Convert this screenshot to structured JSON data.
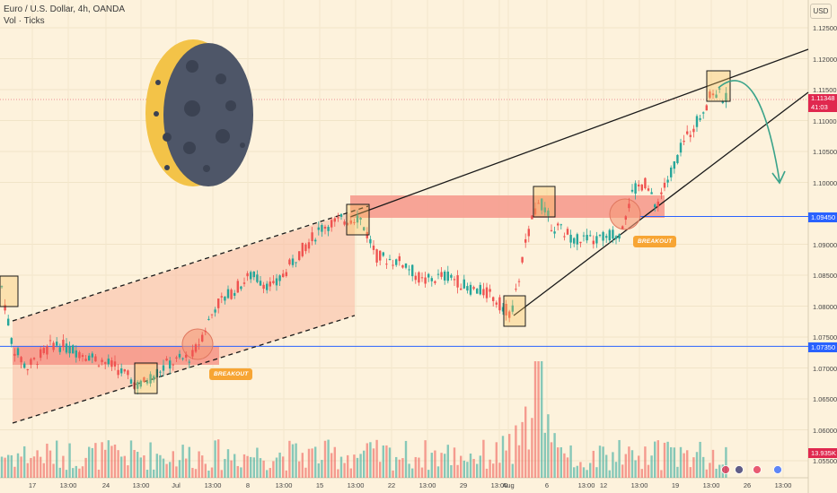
{
  "legend": {
    "title": "Euro / U.S. Dollar, 4h, OANDA",
    "indicator": "Vol · Ticks"
  },
  "currency": "USD",
  "price_axis": [
    {
      "label": "1.12500",
      "v": 1.125
    },
    {
      "label": "1.12000",
      "v": 1.12
    },
    {
      "label": "1.11500",
      "v": 1.115
    },
    {
      "label": "1.11000",
      "v": 1.11
    },
    {
      "label": "1.10500",
      "v": 1.105
    },
    {
      "label": "1.10000",
      "v": 1.1
    },
    {
      "label": "1.09000",
      "v": 1.09
    },
    {
      "label": "1.08500",
      "v": 1.085
    },
    {
      "label": "1.08000",
      "v": 1.08
    },
    {
      "label": "1.07500",
      "v": 1.075
    },
    {
      "label": "1.07000",
      "v": 1.07
    },
    {
      "label": "1.06500",
      "v": 1.065
    },
    {
      "label": "1.06000",
      "v": 1.06
    },
    {
      "label": "1.05500",
      "v": 1.055
    }
  ],
  "price_tags": {
    "current": {
      "price": "1.11348",
      "countdown": "41:03",
      "color": "#e0284f"
    },
    "upper_level": {
      "price": "1.09450",
      "color": "#2962ff"
    },
    "lower_level": {
      "price": "1.07350",
      "color": "#2962ff"
    },
    "volume": {
      "value": "13.935K",
      "color": "#e0284f"
    }
  },
  "time_axis": [
    "17",
    "13:00",
    "24",
    "13:00",
    "Jul",
    "13:00",
    "8",
    "13:00",
    "15",
    "13:00",
    "22",
    "13:00",
    "29",
    "13:00",
    "Aug",
    "6",
    "13:00",
    "12",
    "13:00",
    "19",
    "13:00",
    "26",
    "13:00"
  ],
  "annotations": {
    "breakout_1": "BREAKOUT",
    "breakout_2": "BREAKOUT"
  },
  "colors": {
    "up": "#26a69a",
    "down": "#ef5350",
    "zone": "#f6968a",
    "channel": "#f9b9a3",
    "level_line": "#2962ff",
    "arrow": "#3aa38a",
    "moon_dark": "#4e5668",
    "moon_light": "#f3c348"
  },
  "chart_data": {
    "type": "candlestick",
    "symbol": "EURUSD",
    "timeframe": "4h",
    "levels": [
      1.0945,
      1.0735
    ],
    "series": [
      {
        "name": "EURUSD",
        "values": [
          [
            1.0847,
            1.0725
          ],
          [
            1.0735,
            1.0745
          ],
          [
            1.072,
            1.0725
          ],
          [
            1.07,
            1.072
          ],
          [
            1.0705,
            1.069
          ],
          [
            1.068,
            1.0705
          ],
          [
            1.071,
            1.0715
          ],
          [
            1.0715,
            1.074
          ],
          [
            1.076,
            1.077
          ],
          [
            1.079,
            1.08
          ],
          [
            1.083,
            1.084
          ],
          [
            1.085,
            1.0865
          ],
          [
            1.086,
            1.084
          ],
          [
            1.084,
            1.085
          ],
          [
            1.088,
            1.09
          ],
          [
            1.09,
            1.092
          ],
          [
            1.093,
            1.0945
          ],
          [
            1.093,
            1.09
          ],
          [
            1.089,
            1.087
          ],
          [
            1.087,
            1.086
          ],
          [
            1.086,
            1.084
          ],
          [
            1.084,
            1.0855
          ],
          [
            1.0855,
            1.083
          ],
          [
            1.082,
            1.08
          ],
          [
            1.079,
            1.078
          ],
          [
            1.083,
            1.093
          ],
          [
            1.0945,
            1.092
          ],
          [
            1.092,
            1.0925
          ],
          [
            1.091,
            1.0915
          ],
          [
            1.0925,
            1.0935
          ],
          [
            1.0945,
            1.095
          ],
          [
            1.097,
            1.1
          ],
          [
            1.103,
            1.106
          ],
          [
            1.108,
            1.111
          ],
          [
            1.113,
            1.1148
          ],
          [
            1.114,
            1.1135
          ]
        ]
      }
    ],
    "volume": [
      40,
      35,
      30,
      42,
      28,
      22,
      30,
      38,
      45,
      30,
      28,
      32,
      25,
      30,
      34,
      40,
      38,
      45,
      35,
      30,
      28,
      32,
      50,
      45,
      40,
      85,
      60,
      55,
      48,
      50,
      45,
      40,
      38,
      36,
      30,
      25
    ]
  }
}
